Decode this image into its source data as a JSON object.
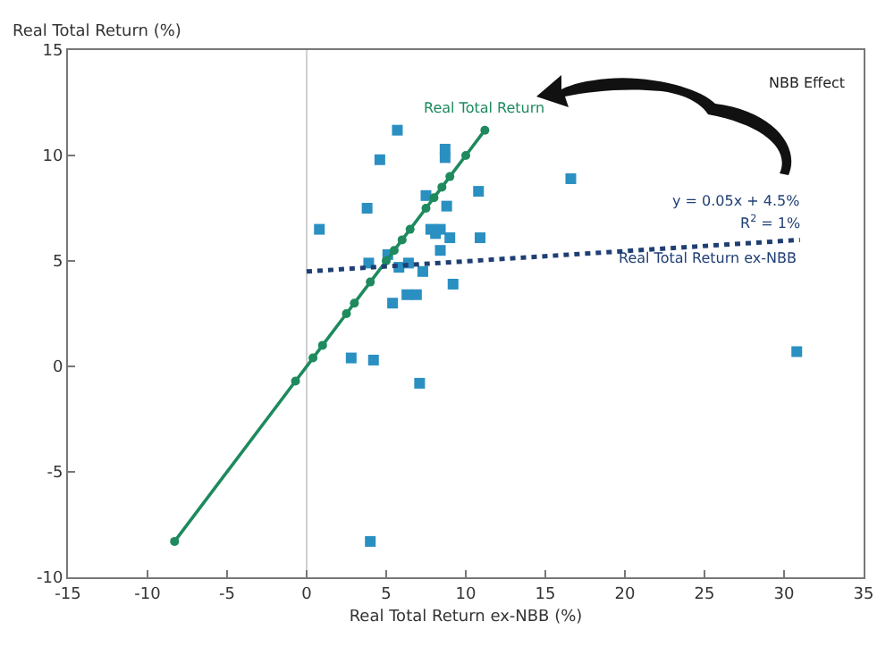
{
  "chart_data": {
    "type": "scatter",
    "xlabel": "Real Total Return ex-NBB (%)",
    "ylabel": "Real Total Return (%)",
    "xlim": [
      -15,
      35
    ],
    "xticks": [
      -15,
      -10,
      -5,
      0,
      5,
      10,
      15,
      20,
      25,
      30,
      35
    ],
    "ylim": [
      -10,
      15
    ],
    "yticks": [
      -10,
      -5,
      0,
      5,
      10,
      15
    ],
    "grid": false,
    "legend": false,
    "marker": "square",
    "ref_lines": [
      {
        "axis": "x",
        "value": 0,
        "color": "#d0d0d0"
      }
    ],
    "series": [
      {
        "color": "#2a8fc1",
        "x": [
          0.8,
          3.8,
          4.6,
          5.7,
          8.7,
          8.7,
          16.6,
          7.5,
          8.8,
          10.8,
          7.8,
          8.4,
          8.1,
          9.0,
          10.9,
          8.4,
          5.1,
          3.9,
          5.8,
          6.4,
          7.3,
          9.2,
          6.9,
          6.3,
          5.4,
          2.8,
          4.2,
          7.1,
          4.0,
          30.8
        ],
        "values": [
          6.5,
          7.5,
          9.8,
          11.2,
          10.3,
          9.9,
          8.9,
          8.1,
          7.6,
          8.3,
          6.5,
          6.5,
          6.3,
          6.1,
          6.1,
          5.5,
          5.3,
          4.9,
          4.7,
          4.9,
          4.5,
          3.9,
          3.4,
          3.4,
          3.0,
          0.4,
          0.3,
          -0.8,
          -8.3,
          0.7
        ]
      },
      {
        "name": "Real Total Return",
        "type": "line",
        "marker": "circle",
        "line_style": "solid",
        "color": "#1e8a5e",
        "x": [
          -8.3,
          -0.7,
          0.4,
          1.0,
          2.5,
          3.0,
          4.0,
          5.0,
          5.5,
          6.0,
          6.5,
          7.5,
          8.0,
          8.5,
          9.0,
          10.0,
          11.2
        ],
        "values": [
          -8.3,
          -0.7,
          0.4,
          1.0,
          2.5,
          3.0,
          4.0,
          5.0,
          5.5,
          6.0,
          6.5,
          7.5,
          8.0,
          8.5,
          9.0,
          10.0,
          11.2
        ]
      },
      {
        "name": "Real Total Return ex-NBB",
        "type": "line",
        "marker": "none",
        "line_style": "dotted",
        "color": "#1f3f73",
        "x": [
          0,
          31
        ],
        "values": [
          4.5,
          6.0
        ]
      }
    ],
    "annotations": [
      "NBB Effect",
      "y = 0.05x + 4.5%",
      "R$^{2}$ = 1%"
    ]
  }
}
